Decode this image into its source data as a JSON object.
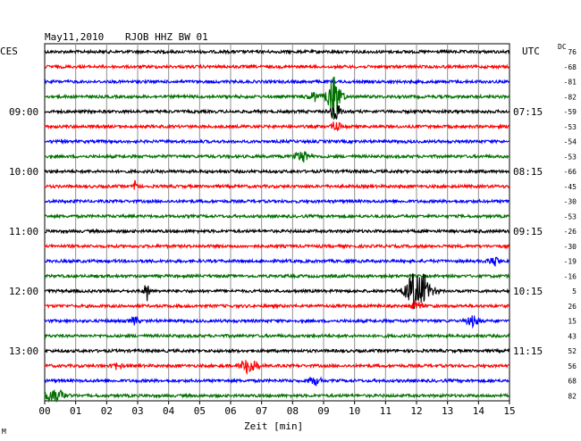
{
  "header": {
    "date": "May11,2010",
    "station": "RJOB HHZ BW 01",
    "left_zone": "CES",
    "right_zone": "UTC",
    "dc_label": "DC"
  },
  "chart_data": {
    "type": "line",
    "title": "May11,2010    RJOB HHZ BW 01",
    "xlabel": "Zeit [min]",
    "xlim": [
      0,
      15
    ],
    "x_ticks": [
      "00",
      "01",
      "02",
      "03",
      "04",
      "05",
      "06",
      "07",
      "08",
      "09",
      "10",
      "11",
      "12",
      "13",
      "14",
      "15"
    ],
    "grid": true,
    "row_colors": [
      "#000000",
      "#ff0000",
      "#0000ff",
      "#007000"
    ],
    "left_hour_labels": [
      {
        "row": 4,
        "text": "09:00"
      },
      {
        "row": 8,
        "text": "10:00"
      },
      {
        "row": 12,
        "text": "11:00"
      },
      {
        "row": 16,
        "text": "12:00"
      },
      {
        "row": 20,
        "text": "13:00"
      }
    ],
    "right_time_labels": [
      {
        "row": 4,
        "text": "07:15"
      },
      {
        "row": 8,
        "text": "08:15"
      },
      {
        "row": 12,
        "text": "09:15"
      },
      {
        "row": 16,
        "text": "10:15"
      },
      {
        "row": 20,
        "text": "11:15"
      }
    ],
    "dc_offsets": [
      "76",
      "-68",
      "-81",
      "-82",
      "-59",
      "-53",
      "-54",
      "-53",
      "-66",
      "-45",
      "-30",
      "-53",
      "-26",
      "-30",
      "-19",
      "-16",
      "5",
      "26",
      "15",
      "43",
      "52",
      "56",
      "68",
      "82"
    ],
    "events": [
      {
        "row": 3,
        "minute": 9.35,
        "amp": 1.5,
        "width": 0.35
      },
      {
        "row": 3,
        "minute": 8.7,
        "amp": 0.35,
        "width": 0.3
      },
      {
        "row": 4,
        "minute": 9.4,
        "amp": 0.7,
        "width": 0.25
      },
      {
        "row": 5,
        "minute": 9.4,
        "amp": 0.45,
        "width": 0.2
      },
      {
        "row": 7,
        "minute": 8.3,
        "amp": 0.4,
        "width": 0.4
      },
      {
        "row": 9,
        "minute": 2.95,
        "amp": 0.6,
        "width": 0.1
      },
      {
        "row": 14,
        "minute": 14.5,
        "amp": 0.3,
        "width": 0.3
      },
      {
        "row": 16,
        "minute": 3.3,
        "amp": 0.75,
        "width": 0.12
      },
      {
        "row": 16,
        "minute": 12.05,
        "amp": 1.4,
        "width": 0.6
      },
      {
        "row": 17,
        "minute": 12.0,
        "amp": 0.35,
        "width": 0.3
      },
      {
        "row": 18,
        "minute": 2.9,
        "amp": 0.3,
        "width": 0.2
      },
      {
        "row": 18,
        "minute": 13.8,
        "amp": 0.35,
        "width": 0.35
      },
      {
        "row": 21,
        "minute": 2.3,
        "amp": 0.3,
        "width": 0.3
      },
      {
        "row": 21,
        "minute": 6.6,
        "amp": 0.6,
        "width": 0.45
      },
      {
        "row": 22,
        "minute": 8.7,
        "amp": 0.35,
        "width": 0.3
      },
      {
        "row": 23,
        "minute": 0.3,
        "amp": 0.45,
        "width": 0.6
      }
    ],
    "footer_mark": "M"
  }
}
